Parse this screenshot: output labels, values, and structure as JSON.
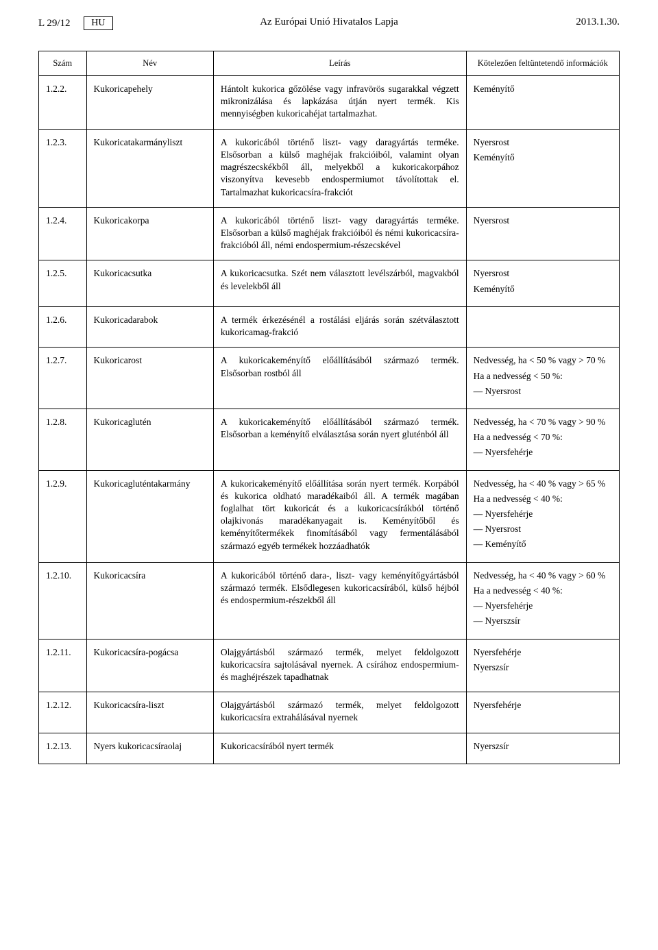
{
  "header": {
    "left": "L 29/12",
    "lang": "HU",
    "center": "Az Európai Unió Hivatalos Lapja",
    "right": "2013.1.30."
  },
  "table": {
    "columns": [
      "Szám",
      "Név",
      "Leírás",
      "Kötelezően feltüntetendő információk"
    ],
    "rows": [
      {
        "num": "1.2.2.",
        "name": "Kukoricapehely",
        "desc": "Hántolt kukorica gőzölése vagy infravörös sugarakkal végzett mikronizálása és lapkázása útján nyert termék. Kis mennyiségben kukoricahéjat tartalmazhat.",
        "info": [
          "Keményítő"
        ]
      },
      {
        "num": "1.2.3.",
        "name": "Kukorica­takarmányliszt",
        "desc": "A kukoricából történő liszt- vagy daragyártás terméke. Elsősorban a külső maghéjak frakcióiból, valamint olyan magrészecskékből áll, melyekből a kukoricakorpához viszonyítva kevesebb endospermiumot távolítottak el. Tartalmazhat kukoricacsíra-frakciót",
        "info": [
          "Nyersrost",
          "Keményítő"
        ]
      },
      {
        "num": "1.2.4.",
        "name": "Kukoricakorpa",
        "desc": "A kukoricából történő liszt- vagy daragyártás terméke. Elsősorban a külső maghéjak frakcióiból és némi kukoricacsíra-frakcióból áll, némi endospermium-részecskével",
        "info": [
          "Nyersrost"
        ]
      },
      {
        "num": "1.2.5.",
        "name": "Kukoricacsutka",
        "desc": "A kukoricacsutka. Szét nem választott levélszárból, magvakból és levelekből áll",
        "info": [
          "Nyersrost",
          "Keményítő"
        ]
      },
      {
        "num": "1.2.6.",
        "name": "Kukoricadarabok",
        "desc": "A termék érkezésénél a rostálási eljárás során szétválasztott kukoricamag-frakció",
        "info": []
      },
      {
        "num": "1.2.7.",
        "name": "Kukoricarost",
        "desc": "A kukoricakeményítő előállításából származó termék. Elsősorban rostból áll",
        "info": [
          "Nedvesség, ha < 50 % vagy > 70 %",
          "Ha a nedvesség < 50 %:",
          "— Nyersrost"
        ]
      },
      {
        "num": "1.2.8.",
        "name": "Kukoricaglutén",
        "desc": "A kukoricakeményítő előállításából származó termék. Elsősorban a keményítő elválasztása során nyert gluténból áll",
        "info": [
          "Nedvesség, ha < 70 % vagy > 90 %",
          "Ha a nedvesség < 70 %:",
          "— Nyersfehérje"
        ]
      },
      {
        "num": "1.2.9.",
        "name": "Kukoricaglutén­takarmány",
        "desc": "A kukoricakeményítő előállítása során nyert termék. Korpából és kukorica oldható maradékaiból áll. A termék magában foglalhat tört kukoricát és a kukoricacsírákból történő olajkivonás maradékanyagait is. Keményítőből és keményítőtermékek finomításából vagy fermentálásából származó egyéb termékek hozzáadhatók",
        "info": [
          "Nedvesség, ha < 40 % vagy > 65 %",
          "Ha a nedvesség < 40 %:",
          "— Nyersfehérje",
          "— Nyersrost",
          "— Keményítő"
        ]
      },
      {
        "num": "1.2.10.",
        "name": "Kukoricacsíra",
        "desc": "A kukoricából történő dara-, liszt- vagy keményítőgyártásból származó termék. Elsődlegesen kukoricacsírából, külső héjból és endospermium-részekből áll",
        "info": [
          "Nedvesség, ha < 40 % vagy > 60 %",
          "Ha a nedvesség < 40 %:",
          "— Nyersfehérje",
          "— Nyerszsír"
        ]
      },
      {
        "num": "1.2.11.",
        "name": "Kukoricacsíra-pogácsa",
        "desc": "Olajgyártásból származó termék, melyet feldolgozott kukoricacsíra sajtolásával nyernek. A csírához endospermium- és maghéjrészek tapadhatnak",
        "info": [
          "Nyersfehérje",
          "Nyerszsír"
        ]
      },
      {
        "num": "1.2.12.",
        "name": "Kukoricacsíra-liszt",
        "desc": "Olajgyártásból származó termék, melyet feldolgozott kukoricacsíra extrahálásával nyernek",
        "info": [
          "Nyersfehérje"
        ]
      },
      {
        "num": "1.2.13.",
        "name": "Nyers kukoricacsíra­olaj",
        "desc": "Kukoricacsírából nyert termék",
        "info": [
          "Nyerszsír"
        ]
      }
    ]
  }
}
